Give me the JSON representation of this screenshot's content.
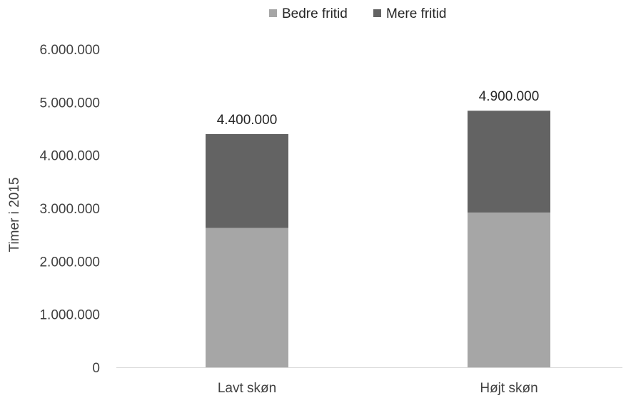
{
  "chart_data": {
    "type": "bar",
    "stacked": true,
    "categories": [
      "Lavt skøn",
      "Højt skøn"
    ],
    "series": [
      {
        "name": "Bedre fritid",
        "values": [
          2630000,
          2920000
        ],
        "color": "#a6a6a6"
      },
      {
        "name": "Mere fritid",
        "values": [
          1770000,
          1920000
        ],
        "color": "#636363"
      }
    ],
    "totals_labels": [
      "4.400.000",
      "4.900.000"
    ],
    "ylabel": "Timer i 2015",
    "xlabel": "",
    "ylim": [
      0,
      6000000
    ],
    "ytick_values": [
      0,
      1000000,
      2000000,
      3000000,
      4000000,
      5000000,
      6000000
    ],
    "ytick_labels": [
      "0",
      "1.000.000",
      "2.000.000",
      "3.000.000",
      "4.000.000",
      "5.000.000",
      "6.000.000"
    ],
    "legend_position": "top",
    "grid": false
  }
}
